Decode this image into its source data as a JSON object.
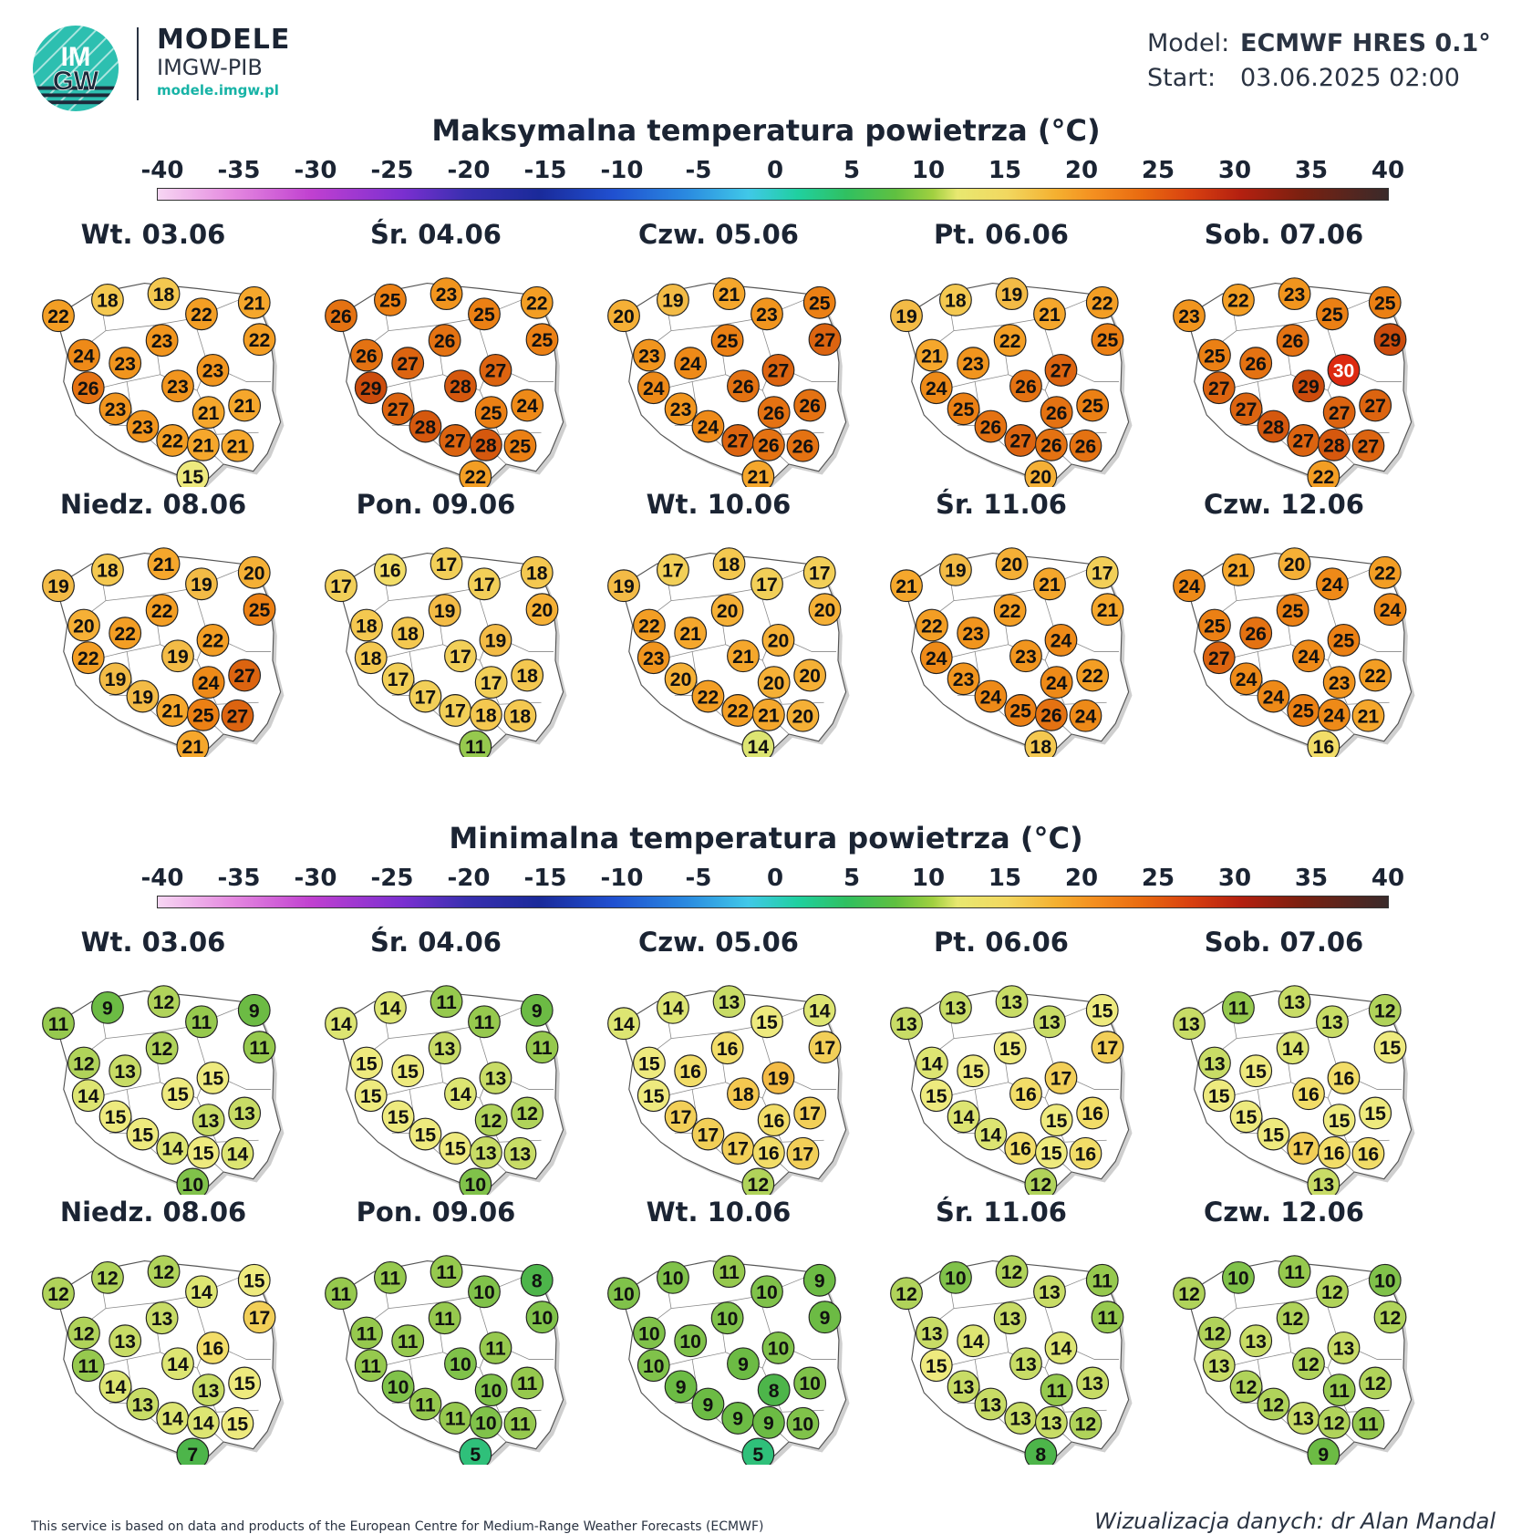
{
  "header": {
    "logo_text_top": "IM",
    "logo_text_bottom": "GW",
    "brand_title": "MODELE",
    "brand_sub": "IMGW-PIB",
    "brand_url": "modele.imgw.pl",
    "model_label": "Model:",
    "model_value": "ECMWF HRES 0.1°",
    "start_label": "Start:",
    "start_value": "03.06.2025 02:00"
  },
  "scale_ticks": [
    "-40",
    "-35",
    "-30",
    "-25",
    "-20",
    "-15",
    "-10",
    "-5",
    "0",
    "5",
    "10",
    "15",
    "20",
    "25",
    "30",
    "35",
    "40"
  ],
  "max_section": {
    "title": "Maksymalna temperatura powietrza (°C)",
    "days": [
      {
        "label": "Wt. 03.06",
        "values": [
          22,
          18,
          18,
          22,
          21,
          22,
          24,
          23,
          23,
          23,
          26,
          23,
          23,
          21,
          21,
          23,
          22,
          21,
          21,
          15
        ]
      },
      {
        "label": "Śr. 04.06",
        "values": [
          26,
          25,
          23,
          25,
          22,
          25,
          26,
          27,
          26,
          27,
          29,
          27,
          28,
          25,
          24,
          28,
          27,
          28,
          25,
          22
        ]
      },
      {
        "label": "Czw. 05.06",
        "values": [
          20,
          19,
          21,
          23,
          25,
          27,
          23,
          24,
          25,
          27,
          24,
          23,
          26,
          26,
          26,
          24,
          27,
          26,
          26,
          21
        ]
      },
      {
        "label": "Pt. 06.06",
        "values": [
          19,
          18,
          19,
          21,
          22,
          25,
          21,
          23,
          22,
          27,
          24,
          25,
          26,
          26,
          25,
          26,
          27,
          26,
          26,
          20
        ]
      },
      {
        "label": "Sob. 07.06",
        "values": [
          23,
          22,
          23,
          25,
          25,
          29,
          25,
          26,
          26,
          30,
          27,
          27,
          29,
          27,
          27,
          28,
          27,
          28,
          27,
          22
        ]
      },
      {
        "label": "Niedz. 08.06",
        "values": [
          19,
          18,
          21,
          19,
          20,
          25,
          20,
          22,
          22,
          22,
          22,
          19,
          19,
          24,
          27,
          19,
          21,
          25,
          27,
          21
        ]
      },
      {
        "label": "Pon. 09.06",
        "values": [
          17,
          16,
          17,
          17,
          18,
          20,
          18,
          18,
          19,
          19,
          18,
          17,
          17,
          17,
          18,
          17,
          17,
          18,
          18,
          11
        ]
      },
      {
        "label": "Wt. 10.06",
        "values": [
          19,
          17,
          18,
          17,
          17,
          20,
          22,
          21,
          20,
          20,
          23,
          20,
          21,
          20,
          20,
          22,
          22,
          21,
          20,
          14
        ]
      },
      {
        "label": "Śr. 11.06",
        "values": [
          21,
          19,
          20,
          21,
          17,
          21,
          22,
          23,
          22,
          24,
          24,
          23,
          23,
          24,
          22,
          24,
          25,
          26,
          24,
          18
        ]
      },
      {
        "label": "Czw. 12.06",
        "values": [
          24,
          21,
          20,
          24,
          22,
          24,
          25,
          26,
          25,
          25,
          27,
          24,
          24,
          23,
          22,
          24,
          25,
          24,
          21,
          16
        ]
      }
    ]
  },
  "min_section": {
    "title": "Minimalna temperatura powietrza (°C)",
    "days": [
      {
        "label": "Wt. 03.06",
        "values": [
          11,
          9,
          12,
          11,
          9,
          11,
          12,
          13,
          12,
          15,
          14,
          15,
          15,
          13,
          13,
          15,
          14,
          15,
          14,
          10
        ]
      },
      {
        "label": "Śr. 04.06",
        "values": [
          14,
          14,
          11,
          11,
          9,
          11,
          15,
          15,
          13,
          13,
          15,
          15,
          14,
          12,
          12,
          15,
          15,
          13,
          13,
          10
        ]
      },
      {
        "label": "Czw. 05.06",
        "values": [
          14,
          14,
          13,
          15,
          14,
          17,
          15,
          16,
          16,
          19,
          15,
          17,
          18,
          16,
          17,
          17,
          17,
          16,
          17,
          12
        ]
      },
      {
        "label": "Pt. 06.06",
        "values": [
          13,
          13,
          13,
          13,
          15,
          17,
          14,
          15,
          15,
          17,
          15,
          14,
          16,
          15,
          16,
          14,
          16,
          15,
          16,
          12
        ]
      },
      {
        "label": "Sob. 07.06",
        "values": [
          13,
          11,
          13,
          13,
          12,
          15,
          13,
          15,
          14,
          16,
          15,
          15,
          16,
          15,
          15,
          15,
          17,
          16,
          16,
          13
        ]
      },
      {
        "label": "Niedz. 08.06",
        "values": [
          12,
          12,
          12,
          14,
          15,
          17,
          12,
          13,
          13,
          16,
          11,
          14,
          14,
          13,
          15,
          13,
          14,
          14,
          15,
          7
        ]
      },
      {
        "label": "Pon. 09.06",
        "values": [
          11,
          11,
          11,
          10,
          8,
          10,
          11,
          11,
          11,
          11,
          11,
          10,
          10,
          10,
          11,
          11,
          11,
          10,
          11,
          5
        ]
      },
      {
        "label": "Wt. 10.06",
        "values": [
          10,
          10,
          11,
          10,
          9,
          9,
          10,
          10,
          10,
          10,
          10,
          9,
          9,
          8,
          10,
          9,
          9,
          9,
          10,
          5
        ]
      },
      {
        "label": "Śr. 11.06",
        "values": [
          12,
          10,
          12,
          13,
          11,
          11,
          13,
          14,
          13,
          14,
          15,
          13,
          13,
          11,
          13,
          13,
          13,
          13,
          12,
          8
        ]
      },
      {
        "label": "Czw. 12.06",
        "values": [
          12,
          10,
          11,
          12,
          10,
          12,
          12,
          13,
          12,
          13,
          13,
          12,
          12,
          11,
          12,
          12,
          13,
          12,
          11,
          9
        ]
      }
    ]
  },
  "colors": {
    "accent": "#17b3a6",
    "text": "#1b2433",
    "highlight_30": "#dd2a10"
  },
  "footer": {
    "left": "This service is based on data and products of the European Centre for Medium-Range Weather Forecasts (ECMWF)",
    "right": "Wizualizacja danych: dr Alan Mandal"
  }
}
